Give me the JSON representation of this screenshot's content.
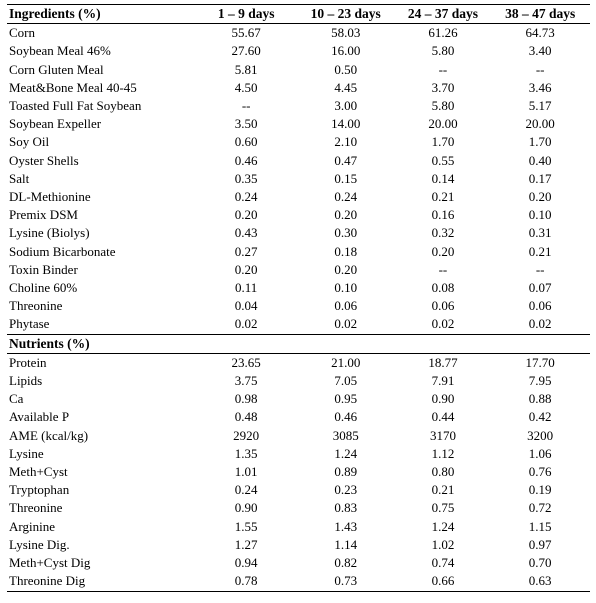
{
  "table": {
    "header": {
      "label": "Ingredients (%)",
      "columns": [
        "1 – 9 days",
        "10 – 23 days",
        "24 – 37 days",
        "38 – 47 days"
      ]
    },
    "ingredients": [
      {
        "name": "Corn",
        "values": [
          "55.67",
          "58.03",
          "61.26",
          "64.73"
        ]
      },
      {
        "name": "Soybean Meal 46%",
        "values": [
          "27.60",
          "16.00",
          "5.80",
          "3.40"
        ]
      },
      {
        "name": "Corn Gluten Meal",
        "values": [
          "5.81",
          "0.50",
          "--",
          "--"
        ]
      },
      {
        "name": "Meat&Bone Meal 40-45",
        "values": [
          "4.50",
          "4.45",
          "3.70",
          "3.46"
        ]
      },
      {
        "name": "Toasted Full Fat Soybean",
        "values": [
          "--",
          "3.00",
          "5.80",
          "5.17"
        ]
      },
      {
        "name": "Soybean Expeller",
        "values": [
          "3.50",
          "14.00",
          "20.00",
          "20.00"
        ]
      },
      {
        "name": "Soy Oil",
        "values": [
          "0.60",
          "2.10",
          "1.70",
          "1.70"
        ]
      },
      {
        "name": "Oyster Shells",
        "values": [
          "0.46",
          "0.47",
          "0.55",
          "0.40"
        ]
      },
      {
        "name": "Salt",
        "values": [
          "0.35",
          "0.15",
          "0.14",
          "0.17"
        ]
      },
      {
        "name": "DL-Methionine",
        "values": [
          "0.24",
          "0.24",
          "0.21",
          "0.20"
        ]
      },
      {
        "name": "Premix DSM",
        "values": [
          "0.20",
          "0.20",
          "0.16",
          "0.10"
        ]
      },
      {
        "name": "Lysine (Biolys)",
        "values": [
          "0.43",
          "0.30",
          "0.32",
          "0.31"
        ]
      },
      {
        "name": "Sodium Bicarbonate",
        "values": [
          "0.27",
          "0.18",
          "0.20",
          "0.21"
        ]
      },
      {
        "name": "Toxin Binder",
        "values": [
          "0.20",
          "0.20",
          "--",
          "--"
        ]
      },
      {
        "name": "Choline 60%",
        "values": [
          "0.11",
          "0.10",
          "0.08",
          "0.07"
        ]
      },
      {
        "name": "Threonine",
        "values": [
          "0.04",
          "0.06",
          "0.06",
          "0.06"
        ]
      },
      {
        "name": "Phytase",
        "values": [
          "0.02",
          "0.02",
          "0.02",
          "0.02"
        ]
      }
    ],
    "nutrients_label": "Nutrients (%)",
    "nutrients": [
      {
        "name": "Protein",
        "values": [
          "23.65",
          "21.00",
          "18.77",
          "17.70"
        ]
      },
      {
        "name": "Lipids",
        "values": [
          "3.75",
          "7.05",
          "7.91",
          "7.95"
        ]
      },
      {
        "name": "Ca",
        "values": [
          "0.98",
          "0.95",
          "0.90",
          "0.88"
        ]
      },
      {
        "name": "Available P",
        "values": [
          "0.48",
          "0.46",
          "0.44",
          "0.42"
        ]
      },
      {
        "name": "AME (kcal/kg)",
        "values": [
          "2920",
          "3085",
          "3170",
          "3200"
        ]
      },
      {
        "name": "Lysine",
        "values": [
          "1.35",
          "1.24",
          "1.12",
          "1.06"
        ]
      },
      {
        "name": "Meth+Cyst",
        "values": [
          "1.01",
          "0.89",
          "0.80",
          "0.76"
        ]
      },
      {
        "name": "Tryptophan",
        "values": [
          "0.24",
          "0.23",
          "0.21",
          "0.19"
        ]
      },
      {
        "name": "Threonine",
        "values": [
          "0.90",
          "0.83",
          "0.75",
          "0.72"
        ]
      },
      {
        "name": "Arginine",
        "values": [
          "1.55",
          "1.43",
          "1.24",
          "1.15"
        ]
      },
      {
        "name": "Lysine Dig.",
        "values": [
          "1.27",
          "1.14",
          "1.02",
          "0.97"
        ]
      },
      {
        "name": "Meth+Cyst Dig",
        "values": [
          "0.94",
          "0.82",
          "0.74",
          "0.70"
        ]
      },
      {
        "name": "Threonine Dig",
        "values": [
          "0.78",
          "0.73",
          "0.66",
          "0.63"
        ]
      }
    ]
  }
}
